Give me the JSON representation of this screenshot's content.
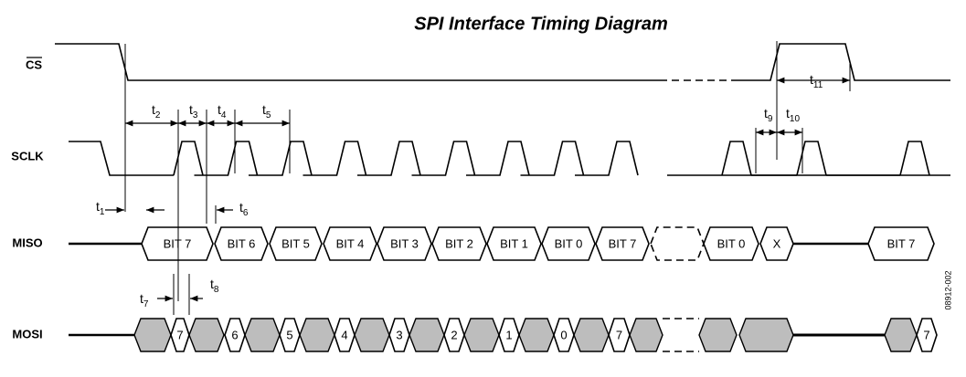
{
  "title": "SPI Interface Timing Diagram",
  "signals": [
    "CS",
    "SCLK",
    "MISO",
    "MOSI"
  ],
  "timings": [
    {
      "symbol": "t",
      "index": "1"
    },
    {
      "symbol": "t",
      "index": "2"
    },
    {
      "symbol": "t",
      "index": "3"
    },
    {
      "symbol": "t",
      "index": "4"
    },
    {
      "symbol": "t",
      "index": "5"
    },
    {
      "symbol": "t",
      "index": "6"
    },
    {
      "symbol": "t",
      "index": "7"
    },
    {
      "symbol": "t",
      "index": "8"
    },
    {
      "symbol": "t",
      "index": "9"
    },
    {
      "symbol": "t",
      "index": "10"
    },
    {
      "symbol": "t",
      "index": "11"
    }
  ],
  "miso_bits": [
    "BIT 7",
    "BIT 6",
    "BIT 5",
    "BIT 4",
    "BIT 3",
    "BIT 2",
    "BIT 1",
    "BIT 0",
    "BIT 7",
    "BIT 0",
    "X",
    "BIT 7"
  ],
  "mosi_bits": [
    "7",
    "6",
    "5",
    "4",
    "3",
    "2",
    "1",
    "0",
    "7",
    "7"
  ],
  "figure_code": "08912-002"
}
